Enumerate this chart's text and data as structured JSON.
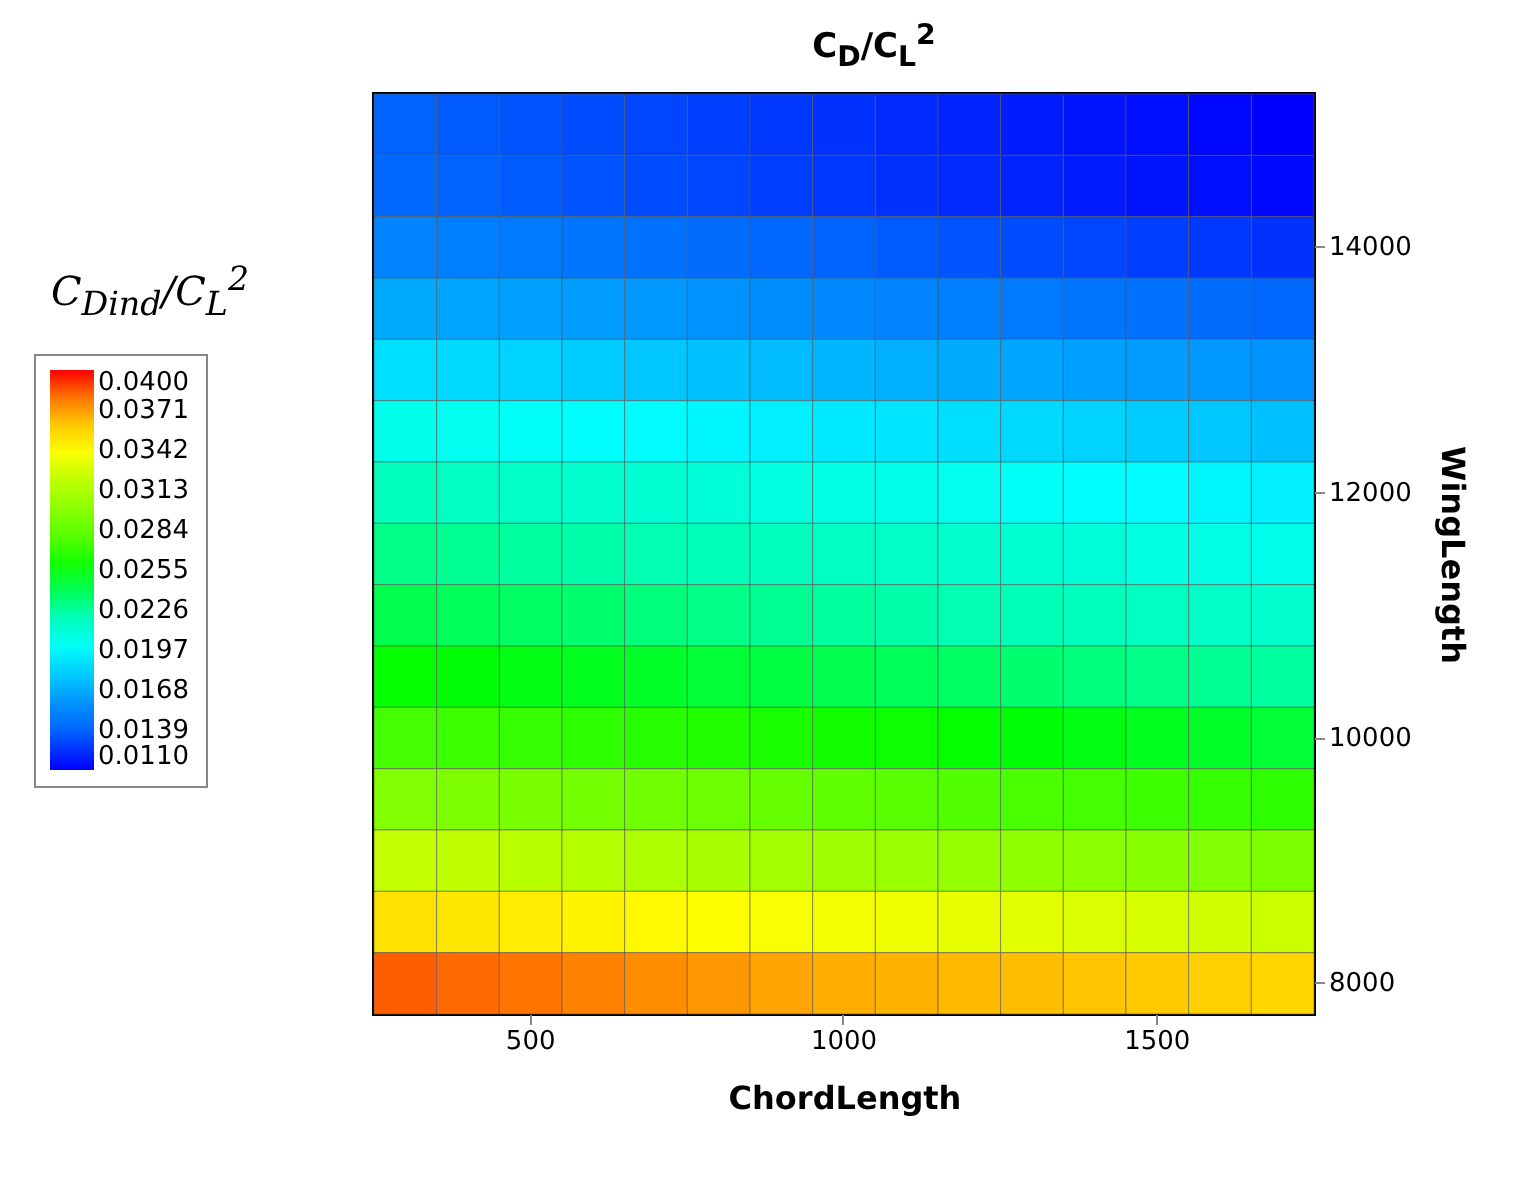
{
  "chart_data": {
    "type": "heatmap",
    "title": "C$_{D}$/C$_{L}$$^{2}$",
    "xlabel": "ChordLength",
    "ylabel": "WingLength",
    "legend_title": "C$_{Dind}$/C$_{L}$$^{2}$",
    "categories": [
      null,
      null,
      "500",
      null,
      null,
      null,
      null,
      "1000",
      null,
      null,
      null,
      null,
      "1500",
      null,
      null
    ],
    "y_categories": [
      null,
      null,
      "14000",
      null,
      null,
      null,
      "12000",
      null,
      null,
      null,
      "10000",
      null,
      null,
      null,
      "8000"
    ],
    "cells": [
      [
        0.0138,
        0.0136,
        0.0134,
        0.0132,
        0.013,
        0.0128,
        0.0126,
        0.0124,
        0.0122,
        0.012,
        0.0118,
        0.0116,
        0.0114,
        0.0112,
        0.011
      ],
      [
        0.014,
        0.0138,
        0.0136,
        0.0134,
        0.0132,
        0.013,
        0.0128,
        0.0126,
        0.0124,
        0.0122,
        0.012,
        0.0118,
        0.0116,
        0.0114,
        0.0112
      ],
      [
        0.0152,
        0.015,
        0.0148,
        0.0146,
        0.0144,
        0.0142,
        0.014,
        0.0138,
        0.0136,
        0.0134,
        0.0132,
        0.013,
        0.0128,
        0.0126,
        0.0124
      ],
      [
        0.0168,
        0.0166,
        0.0164,
        0.0162,
        0.016,
        0.0158,
        0.0156,
        0.0154,
        0.0152,
        0.015,
        0.0148,
        0.0146,
        0.0144,
        0.0142,
        0.014
      ],
      [
        0.0186,
        0.0184,
        0.0182,
        0.018,
        0.0178,
        0.0176,
        0.0174,
        0.0172,
        0.017,
        0.0168,
        0.0166,
        0.0164,
        0.0162,
        0.016,
        0.0158
      ],
      [
        0.0204,
        0.0202,
        0.02,
        0.0198,
        0.0196,
        0.0194,
        0.0192,
        0.019,
        0.0188,
        0.0186,
        0.0184,
        0.0182,
        0.018,
        0.0178,
        0.0176
      ],
      [
        0.022,
        0.0218,
        0.0216,
        0.0214,
        0.0212,
        0.021,
        0.0208,
        0.0206,
        0.0204,
        0.0202,
        0.02,
        0.0198,
        0.0196,
        0.0194,
        0.0192
      ],
      [
        0.0232,
        0.023,
        0.0228,
        0.0226,
        0.0224,
        0.0222,
        0.022,
        0.0218,
        0.0216,
        0.0214,
        0.0212,
        0.021,
        0.0208,
        0.0206,
        0.0204
      ],
      [
        0.0242,
        0.024,
        0.0238,
        0.0236,
        0.0234,
        0.0232,
        0.023,
        0.0228,
        0.0226,
        0.0224,
        0.0222,
        0.022,
        0.0218,
        0.0216,
        0.0214
      ],
      [
        0.0256,
        0.0254,
        0.0252,
        0.025,
        0.0248,
        0.0246,
        0.0244,
        0.0242,
        0.024,
        0.0238,
        0.0236,
        0.0234,
        0.0232,
        0.023,
        0.0228
      ],
      [
        0.0274,
        0.0272,
        0.027,
        0.0268,
        0.0266,
        0.0264,
        0.0262,
        0.026,
        0.0258,
        0.0256,
        0.0254,
        0.0252,
        0.025,
        0.0248,
        0.0246
      ],
      [
        0.0296,
        0.0294,
        0.0292,
        0.029,
        0.0288,
        0.0286,
        0.0284,
        0.0282,
        0.028,
        0.0278,
        0.0276,
        0.0274,
        0.0272,
        0.027,
        0.0268
      ],
      [
        0.0322,
        0.032,
        0.0318,
        0.0316,
        0.0314,
        0.0312,
        0.031,
        0.0308,
        0.0306,
        0.0304,
        0.0302,
        0.03,
        0.0298,
        0.0296,
        0.0294
      ],
      [
        0.0352,
        0.035,
        0.0348,
        0.0346,
        0.0344,
        0.0342,
        0.034,
        0.0338,
        0.0336,
        0.0334,
        0.0332,
        0.033,
        0.0328,
        0.0326,
        0.0324
      ],
      [
        0.0384,
        0.0382,
        0.038,
        0.0378,
        0.0376,
        0.0374,
        0.0372,
        0.037,
        0.0368,
        0.0366,
        0.0364,
        0.0362,
        0.036,
        0.0358,
        0.0356
      ]
    ],
    "clim": [
      0.011,
      0.04
    ],
    "cticks": [
      {
        "value": 0.011,
        "label": "0.0110"
      },
      {
        "value": 0.0139,
        "label": "0.0139"
      },
      {
        "value": 0.0168,
        "label": "0.0168"
      },
      {
        "value": 0.0197,
        "label": "0.0197"
      },
      {
        "value": 0.0226,
        "label": "0.0226"
      },
      {
        "value": 0.0255,
        "label": "0.0255"
      },
      {
        "value": 0.0284,
        "label": "0.0284"
      },
      {
        "value": 0.0313,
        "label": "0.0313"
      },
      {
        "value": 0.0342,
        "label": "0.0342"
      },
      {
        "value": 0.0371,
        "label": "0.0371"
      },
      {
        "value": 0.04,
        "label": "0.0400"
      }
    ],
    "colors": [
      "#0000ff",
      "#0066ff",
      "#00aaff",
      "#00ffff",
      "#00ffaa",
      "#00ff00",
      "#66ff00",
      "#aaff00",
      "#ffff00",
      "#ffaa00",
      "#ff0000"
    ]
  }
}
